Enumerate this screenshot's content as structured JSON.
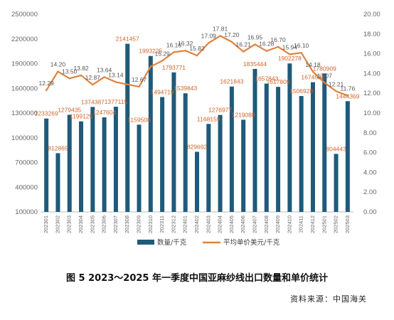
{
  "figure": {
    "caption": "图 5   2023～2025 年一季度中国亚麻纱线出口数量和单价统计",
    "source": "资料来源：中国海关"
  },
  "chart_data": {
    "type": "bar",
    "categories": [
      "202301",
      "202302",
      "202303",
      "202304",
      "202305",
      "202306",
      "202307",
      "202308",
      "202309",
      "202310",
      "202311",
      "202312",
      "202401",
      "202402",
      "202403",
      "202404",
      "202405",
      "202406",
      "202407",
      "202408",
      "202409",
      "202410",
      "202411",
      "202412",
      "202501",
      "202502",
      "202503"
    ],
    "series": [
      {
        "name": "数量/千克",
        "type": "bar",
        "axis": "left",
        "color": "#1f5a7a",
        "values": [
          1233269,
          812865,
          1279435,
          1199125,
          1374387,
          1247604,
          1377115,
          2141457,
          1159508,
          1993225,
          1494719,
          1793771,
          1539843,
          829692,
          1168159,
          1276977,
          1621843,
          1219088,
          1835444,
          1657843,
          1617809,
          1902278,
          1506928,
          1674533,
          1780909,
          804443,
          1444369
        ],
        "labels": [
          "1233269",
          "812865",
          "1279435",
          "1199125",
          "1374387",
          "1247604",
          "1377115",
          "2141457",
          "1159508",
          "1993225",
          "1494719",
          "1793771",
          "1539843",
          "829692",
          "1168159",
          "1276977",
          "1621843",
          "1219088",
          "1835444",
          "1657843",
          "1617809",
          "1902278",
          "1506928",
          "1674533",
          "1780909",
          "804443",
          "1444369"
        ]
      },
      {
        "name": "平均单价美元/千克",
        "type": "line",
        "axis": "right",
        "color": "#e0823d",
        "values": [
          12.29,
          14.2,
          13.5,
          13.82,
          12.87,
          13.64,
          13.14,
          12.9,
          12.67,
          14.7,
          15.29,
          16.16,
          16.32,
          15.82,
          17.09,
          17.81,
          17.2,
          16.21,
          16.95,
          16.28,
          16.7,
          15.94,
          16.1,
          14.18,
          13.07,
          12.21,
          11.76
        ],
        "labels": [
          "12.29",
          "14.20",
          "13.50",
          "13.82",
          "12.87",
          "13.64",
          "13.14",
          "",
          "12.67",
          "",
          "15.29",
          "16.16",
          "16.32",
          "15.82",
          "17.09",
          "17.81",
          "17.20",
          "16.21",
          "16.95",
          "16.28",
          "16.70",
          "15.94",
          "16.10",
          "14.18",
          "13.07",
          "12.21",
          "11.76"
        ]
      }
    ],
    "left_axis": {
      "min": 100000,
      "max": 2500000,
      "ticks": [
        "100000",
        "400000",
        "700000",
        "1000000",
        "1300000",
        "1600000",
        "1900000",
        "2200000",
        "2500000"
      ]
    },
    "right_axis": {
      "min": 0,
      "max": 20,
      "ticks": [
        "0.00",
        "2.00",
        "4.00",
        "6.00",
        "8.00",
        "10.00",
        "12.00",
        "14.00",
        "16.00",
        "18.00",
        "20.00"
      ]
    },
    "legend": {
      "position": "bottom"
    },
    "grid": false,
    "colors": {
      "bar": "#1f5a7a",
      "line": "#e0823d",
      "bar_label": "#d0652a",
      "line_label": "#555555",
      "axis_text": "#666666"
    }
  }
}
